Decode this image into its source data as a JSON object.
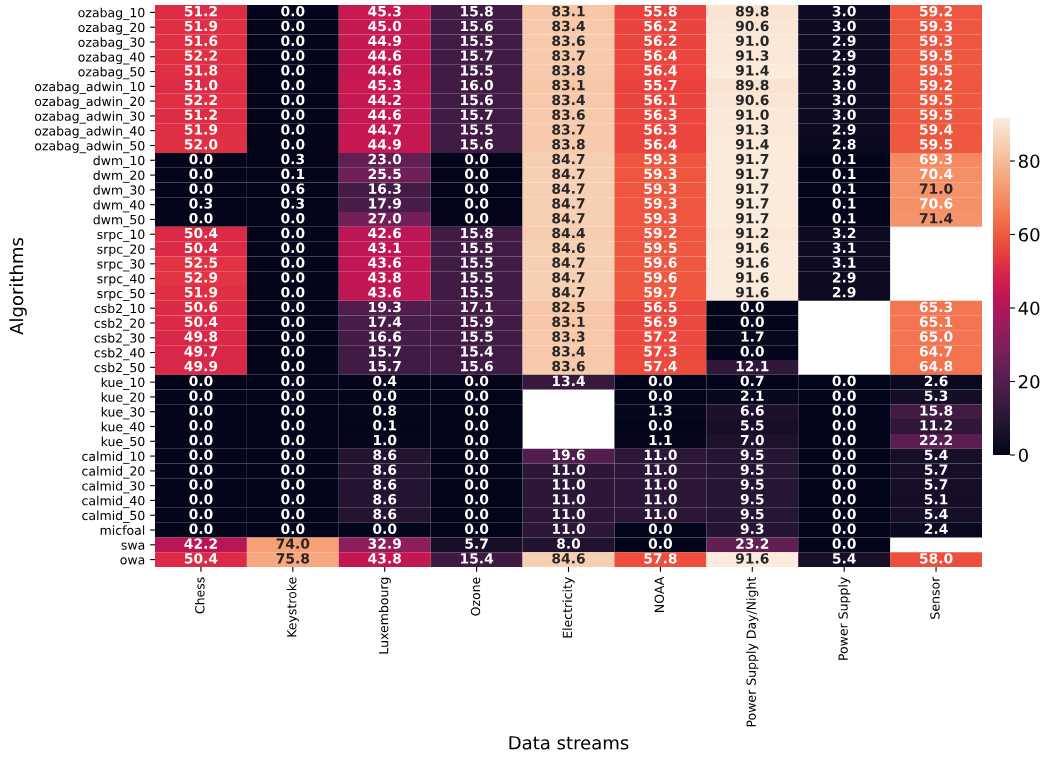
{
  "chart_data": {
    "type": "heatmap",
    "xlabel": "Data streams",
    "ylabel": "Algorithms",
    "categories": [
      "Chess",
      "Keystroke",
      "Luxembourg",
      "Ozone",
      "Electricity",
      "NOAA",
      "Power Supply Day/Night",
      "Power Supply",
      "Sensor"
    ],
    "y_categories": [
      "ozabag_10",
      "ozabag_20",
      "ozabag_30",
      "ozabag_40",
      "ozabag_50",
      "ozabag_adwin_10",
      "ozabag_adwin_20",
      "ozabag_adwin_30",
      "ozabag_adwin_40",
      "ozabag_adwin_50",
      "dwm_10",
      "dwm_20",
      "dwm_30",
      "dwm_40",
      "dwm_50",
      "srpc_10",
      "srpc_20",
      "srpc_30",
      "srpc_40",
      "srpc_50",
      "csb2_10",
      "csb2_20",
      "csb2_30",
      "csb2_40",
      "csb2_50",
      "kue_10",
      "kue_20",
      "kue_30",
      "kue_40",
      "kue_50",
      "calmid_10",
      "calmid_20",
      "calmid_30",
      "calmid_40",
      "calmid_50",
      "micfoal",
      "swa",
      "owa"
    ],
    "cells": [
      [
        51.2,
        0.0,
        45.3,
        15.8,
        83.1,
        55.8,
        89.8,
        3.0,
        59.2
      ],
      [
        51.9,
        0.0,
        45.0,
        15.6,
        83.4,
        56.2,
        90.6,
        3.0,
        59.3
      ],
      [
        51.6,
        0.0,
        44.9,
        15.5,
        83.6,
        56.2,
        91.0,
        2.9,
        59.3
      ],
      [
        52.2,
        0.0,
        44.6,
        15.7,
        83.7,
        56.4,
        91.3,
        2.9,
        59.5
      ],
      [
        51.8,
        0.0,
        44.6,
        15.5,
        83.8,
        56.4,
        91.4,
        2.9,
        59.5
      ],
      [
        51.0,
        0.0,
        45.3,
        16.0,
        83.1,
        55.7,
        89.8,
        3.0,
        59.2
      ],
      [
        52.2,
        0.0,
        44.2,
        15.6,
        83.4,
        56.1,
        90.6,
        3.0,
        59.5
      ],
      [
        51.2,
        0.0,
        44.6,
        15.7,
        83.6,
        56.3,
        91.0,
        3.0,
        59.5
      ],
      [
        51.9,
        0.0,
        44.7,
        15.5,
        83.7,
        56.3,
        91.3,
        2.9,
        59.4
      ],
      [
        52.0,
        0.0,
        44.9,
        15.6,
        83.8,
        56.4,
        91.4,
        2.8,
        59.5
      ],
      [
        0.0,
        0.3,
        23.0,
        0.0,
        84.7,
        59.3,
        91.7,
        0.1,
        69.3
      ],
      [
        0.0,
        0.1,
        25.5,
        0.0,
        84.7,
        59.3,
        91.7,
        0.1,
        70.4
      ],
      [
        0.0,
        0.6,
        16.3,
        0.0,
        84.7,
        59.3,
        91.7,
        0.1,
        71.0
      ],
      [
        0.3,
        0.3,
        17.9,
        0.0,
        84.7,
        59.3,
        91.7,
        0.1,
        70.6
      ],
      [
        0.0,
        0.0,
        27.0,
        0.0,
        84.7,
        59.3,
        91.7,
        0.1,
        71.4
      ],
      [
        50.4,
        0.0,
        42.6,
        15.8,
        84.4,
        59.2,
        91.2,
        3.2,
        null
      ],
      [
        50.4,
        0.0,
        43.1,
        15.5,
        84.6,
        59.5,
        91.6,
        3.1,
        null
      ],
      [
        52.5,
        0.0,
        43.6,
        15.5,
        84.7,
        59.6,
        91.6,
        3.1,
        null
      ],
      [
        52.9,
        0.0,
        43.8,
        15.5,
        84.7,
        59.6,
        91.6,
        2.9,
        null
      ],
      [
        51.9,
        0.0,
        43.6,
        15.5,
        84.7,
        59.7,
        91.6,
        2.9,
        null
      ],
      [
        50.6,
        0.0,
        19.3,
        17.1,
        82.5,
        56.5,
        0.0,
        null,
        65.3
      ],
      [
        50.4,
        0.0,
        17.4,
        15.9,
        83.1,
        56.9,
        0.0,
        null,
        65.1
      ],
      [
        49.8,
        0.0,
        16.6,
        15.5,
        83.3,
        57.2,
        1.7,
        null,
        65.0
      ],
      [
        49.7,
        0.0,
        15.7,
        15.4,
        83.4,
        57.3,
        0.0,
        null,
        64.7
      ],
      [
        49.9,
        0.0,
        15.7,
        15.6,
        83.6,
        57.4,
        12.1,
        null,
        64.8
      ],
      [
        0.0,
        0.0,
        0.4,
        0.0,
        13.4,
        0.0,
        0.7,
        0.0,
        2.6
      ],
      [
        0.0,
        0.0,
        0.0,
        0.0,
        null,
        0.0,
        2.1,
        0.0,
        5.3
      ],
      [
        0.0,
        0.0,
        0.8,
        0.0,
        null,
        1.3,
        6.6,
        0.0,
        15.8
      ],
      [
        0.0,
        0.0,
        0.1,
        0.0,
        null,
        0.0,
        5.5,
        0.0,
        11.2
      ],
      [
        0.0,
        0.0,
        1.0,
        0.0,
        null,
        1.1,
        7.0,
        0.0,
        22.2
      ],
      [
        0.0,
        0.0,
        8.6,
        0.0,
        19.6,
        11.0,
        9.5,
        0.0,
        5.4
      ],
      [
        0.0,
        0.0,
        8.6,
        0.0,
        11.0,
        11.0,
        9.5,
        0.0,
        5.7
      ],
      [
        0.0,
        0.0,
        8.6,
        0.0,
        11.0,
        11.0,
        9.5,
        0.0,
        5.7
      ],
      [
        0.0,
        0.0,
        8.6,
        0.0,
        11.0,
        11.0,
        9.5,
        0.0,
        5.1
      ],
      [
        0.0,
        0.0,
        8.6,
        0.0,
        11.0,
        11.0,
        9.5,
        0.0,
        5.4
      ],
      [
        0.0,
        0.0,
        0.0,
        0.0,
        11.0,
        0.0,
        9.3,
        0.0,
        2.4
      ],
      [
        42.2,
        74.0,
        32.9,
        5.7,
        8.0,
        0.0,
        23.2,
        0.0,
        null
      ],
      [
        50.4,
        75.8,
        43.8,
        15.4,
        84.6,
        57.8,
        91.6,
        5.4,
        58.0
      ]
    ],
    "cell_labels": [
      [
        "51.2",
        "0.0",
        "45.3",
        "15.8",
        "83.1",
        "55.8",
        "89.8",
        "3.0",
        "59.2"
      ],
      [
        "51.9",
        "0.0",
        "45.0",
        "15.6",
        "83.4",
        "56.2",
        "90.6",
        "3.0",
        "59.3"
      ],
      [
        "51.6",
        "0.0",
        "44.9",
        "15.5",
        "83.6",
        "56.2",
        "91.0",
        "2.9",
        "59.3"
      ],
      [
        "52.2",
        "0.0",
        "44.6",
        "15.7",
        "83.7",
        "56.4",
        "91.3",
        "2.9",
        "59.5"
      ],
      [
        "51.8",
        "0.0",
        "44.6",
        "15.5",
        "83.8",
        "56.4",
        "91.4",
        "2.9",
        "59.5"
      ],
      [
        "51.0",
        "0.0",
        "45.3",
        "16.0",
        "83.1",
        "55.7",
        "89.8",
        "3.0",
        "59.2"
      ],
      [
        "52.2",
        "0.0",
        "44.2",
        "15.6",
        "83.4",
        "56.1",
        "90.6",
        "3.0",
        "59.5"
      ],
      [
        "51.2",
        "0.0",
        "44.6",
        "15.7",
        "83.6",
        "56.3",
        "91.0",
        "3.0",
        "59.5"
      ],
      [
        "51.9",
        "0.0",
        "44.7",
        "15.5",
        "83.7",
        "56.3",
        "91.3",
        "2.9",
        "59.4"
      ],
      [
        "52.0",
        "0.0",
        "44.9",
        "15.6",
        "83.8",
        "56.4",
        "91.4",
        "2.8",
        "59.5"
      ],
      [
        "0.0",
        "0.3",
        "23.0",
        "0.0",
        "84.7",
        "59.3",
        "91.7",
        "0.1",
        "69.3"
      ],
      [
        "0.0",
        "0.1",
        "25.5",
        "0.0",
        "84.7",
        "59.3",
        "91.7",
        "0.1",
        "70.4"
      ],
      [
        "0.0",
        "0.6",
        "16.3",
        "0.0",
        "84.7",
        "59.3",
        "91.7",
        "0.1",
        "71.0"
      ],
      [
        "0.3",
        "0.3",
        "17.9",
        "0.0",
        "84.7",
        "59.3",
        "91.7",
        "0.1",
        "70.6"
      ],
      [
        "0.0",
        "0.0",
        "27.0",
        "0.0",
        "84.7",
        "59.3",
        "91.7",
        "0.1",
        "71.4"
      ],
      [
        "50.4",
        "0.0",
        "42.6",
        "15.8",
        "84.4",
        "59.2",
        "91.2",
        "3.2",
        null
      ],
      [
        "50.4",
        "0.0",
        "43.1",
        "15.5",
        "84.6",
        "59.5",
        "91.6",
        "3.1",
        null
      ],
      [
        "52.5",
        "0.0",
        "43.6",
        "15.5",
        "84.7",
        "59.6",
        "91.6",
        "3.1",
        null
      ],
      [
        "52.9",
        "0.0",
        "43.8",
        "15.5",
        "84.7",
        "59.6",
        "91.6",
        "2.9",
        null
      ],
      [
        "51.9",
        "0.0",
        "43.6",
        "15.5",
        "84.7",
        "59.7",
        "91.6",
        "2.9",
        null
      ],
      [
        "50.6",
        "0.0",
        "19.3",
        "17.1",
        "82.5",
        "56.5",
        "0.0",
        null,
        "65.3"
      ],
      [
        "50.4",
        "0.0",
        "17.4",
        "15.9",
        "83.1",
        "56.9",
        "0.0",
        null,
        "65.1"
      ],
      [
        "49.8",
        "0.0",
        "16.6",
        "15.5",
        "83.3",
        "57.2",
        "1.7",
        null,
        "65.0"
      ],
      [
        "49.7",
        "0.0",
        "15.7",
        "15.4",
        "83.4",
        "57.3",
        "0.0",
        null,
        "64.7"
      ],
      [
        "49.9",
        "0.0",
        "15.7",
        "15.6",
        "83.6",
        "57.4",
        "12.1",
        null,
        "64.8"
      ],
      [
        "0.0",
        "0.0",
        "0.4",
        "0.0",
        "13.4",
        "0.0",
        "0.7",
        "0.0",
        "2.6"
      ],
      [
        "0.0",
        "0.0",
        "0.0",
        "0.0",
        null,
        "0.0",
        "2.1",
        "0.0",
        "5.3"
      ],
      [
        "0.0",
        "0.0",
        "0.8",
        "0.0",
        null,
        "1.3",
        "6.6",
        "0.0",
        "15.8"
      ],
      [
        "0.0",
        "0.0",
        "0.1",
        "0.0",
        null,
        "0.0",
        "5.5",
        "0.0",
        "11.2"
      ],
      [
        "0.0",
        "0.0",
        "1.0",
        "0.0",
        null,
        "1.1",
        "7.0",
        "0.0",
        "22.2"
      ],
      [
        "0.0",
        "0.0",
        "8.6",
        "0.0",
        "19.6",
        "11.0",
        "9.5",
        "0.0",
        "5.4"
      ],
      [
        "0.0",
        "0.0",
        "8.6",
        "0.0",
        "11.0",
        "11.0",
        "9.5",
        "0.0",
        "5.7"
      ],
      [
        "0.0",
        "0.0",
        "8.6",
        "0.0",
        "11.0",
        "11.0",
        "9.5",
        "0.0",
        "5.7"
      ],
      [
        "0.0",
        "0.0",
        "8.6",
        "0.0",
        "11.0",
        "11.0",
        "9.5",
        "0.0",
        "5.1"
      ],
      [
        "0.0",
        "0.0",
        "8.6",
        "0.0",
        "11.0",
        "11.0",
        "9.5",
        "0.0",
        "5.4"
      ],
      [
        "0.0",
        "0.0",
        "0.0",
        "0.0",
        "11.0",
        "0.0",
        "9.3",
        "0.0",
        "2.4"
      ],
      [
        "42.2",
        "74.0",
        "32.9",
        "5.7",
        "8.0",
        "0.0",
        "23.2",
        "0.0",
        null
      ],
      [
        "50.4",
        "75.8",
        "43.8",
        "15.4",
        "84.6",
        "57.8",
        "91.6",
        "5.4",
        "58.0"
      ]
    ],
    "clim": [
      0,
      91.7
    ],
    "cticks": [
      0,
      20,
      40,
      60,
      80
    ],
    "data_labels": true,
    "grid": false
  }
}
